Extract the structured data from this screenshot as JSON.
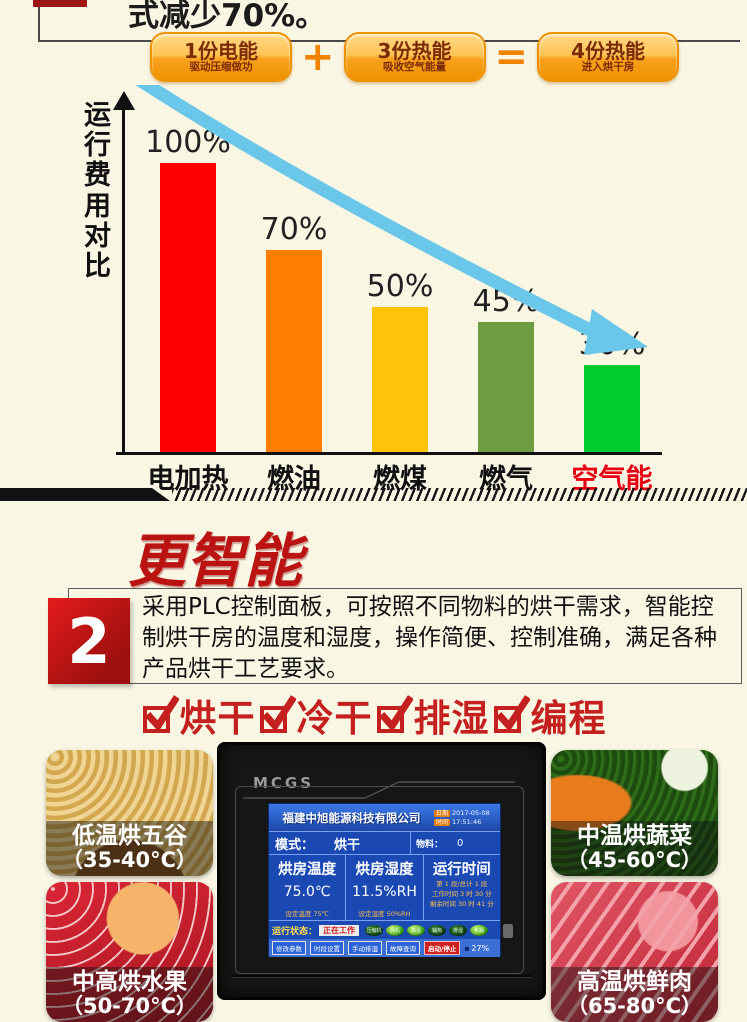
{
  "top": {
    "partial_text": "式减少70%。",
    "formula": {
      "items": [
        {
          "label": "1份电能",
          "sub": "驱动压缩做功"
        },
        {
          "label": "3份热能",
          "sub": "吸收空气能量"
        },
        {
          "label": "4份热能",
          "sub": "进入烘干房"
        }
      ],
      "operators": [
        "+",
        "="
      ]
    }
  },
  "chart_data": {
    "type": "bar",
    "title": "",
    "ylabel": "运行费用对比",
    "categories": [
      "电加热",
      "燃油",
      "燃煤",
      "燃气",
      "空气能"
    ],
    "values": [
      100,
      70,
      50,
      45,
      30
    ],
    "value_labels": [
      "100%",
      "70%",
      "50%",
      "45%",
      "30%"
    ],
    "bar_colors": [
      "#fe0000",
      "#ff7e00",
      "#ffc40a",
      "#6d9c41",
      "#01cc30"
    ],
    "highlight_category": "空气能",
    "highlight_color": "#e60012",
    "arrow_color": "#6bc7ea",
    "ylim": [
      0,
      110
    ],
    "grid": false,
    "legend": "none"
  },
  "section2": {
    "number": "2",
    "title": "更智能",
    "body": "采用PLC控制面板，可按照不同物料的烘干需求，智能控制烘干房的温度和湿度，操作简便、控制准确，满足各种产品烘干工艺要求。",
    "features": [
      "烘干",
      "冷干",
      "排湿",
      "编程"
    ]
  },
  "panel": {
    "brand": "MCGS",
    "screen": {
      "company": "福建中旭能源科技有限公司",
      "date_label": "日期",
      "date": "2017-05-08",
      "time_label": "时间",
      "time": "17:51:46",
      "mode_label": "模式：",
      "mode": "烘干",
      "material_label": "物料：",
      "material": "0",
      "cols": [
        {
          "title": "烘房温度",
          "value": "75.0℃",
          "sub": "设定温度  75℃"
        },
        {
          "title": "烘房湿度",
          "value": "11.5%RH",
          "sub": "设定湿度  50%RH"
        },
        {
          "title": "运行时间",
          "lines": [
            "第 1 段/总计 1 段",
            "工作时间 3 时 30 分",
            "剩余时间 30 时 41 分"
          ]
        }
      ],
      "status_label": "运行状态：",
      "status_value": "正在工作",
      "leds": [
        "压缩机",
        "风机",
        "除湿",
        "辅热",
        "排湿",
        "化霜"
      ],
      "buttons": [
        "修改参数",
        "时段设置",
        "手动排湿",
        "故障查询"
      ],
      "stop_button": "启动/停止",
      "percent": "27%"
    }
  },
  "foods": [
    {
      "name": "低温烘五谷",
      "range": "（35-40°C）"
    },
    {
      "name": "中高烘水果",
      "range": "（50-70°C）"
    },
    {
      "name": "中温烘蔬菜",
      "range": "（45-60°C）"
    },
    {
      "name": "高温烘鲜肉",
      "range": "（65-80°C）"
    }
  ]
}
